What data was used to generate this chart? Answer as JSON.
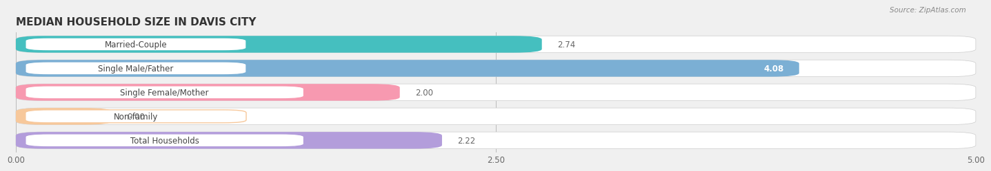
{
  "title": "MEDIAN HOUSEHOLD SIZE IN DAVIS CITY",
  "source": "Source: ZipAtlas.com",
  "categories": [
    "Married-Couple",
    "Single Male/Father",
    "Single Female/Mother",
    "Non-family",
    "Total Households"
  ],
  "values": [
    2.74,
    4.08,
    2.0,
    0.0,
    2.22
  ],
  "bar_colors": [
    "#45bfbf",
    "#7bafd4",
    "#f799b0",
    "#f7c89b",
    "#b39ddb"
  ],
  "xlim": [
    0,
    5.0
  ],
  "xticks": [
    0.0,
    2.5,
    5.0
  ],
  "xticklabels": [
    "0.00",
    "2.50",
    "5.00"
  ],
  "background_color": "#f0f0f0",
  "bar_bg_color": "#e4e4e4",
  "title_fontsize": 11,
  "label_fontsize": 8.5,
  "value_fontsize": 8.5,
  "figsize": [
    14.06,
    2.69
  ]
}
